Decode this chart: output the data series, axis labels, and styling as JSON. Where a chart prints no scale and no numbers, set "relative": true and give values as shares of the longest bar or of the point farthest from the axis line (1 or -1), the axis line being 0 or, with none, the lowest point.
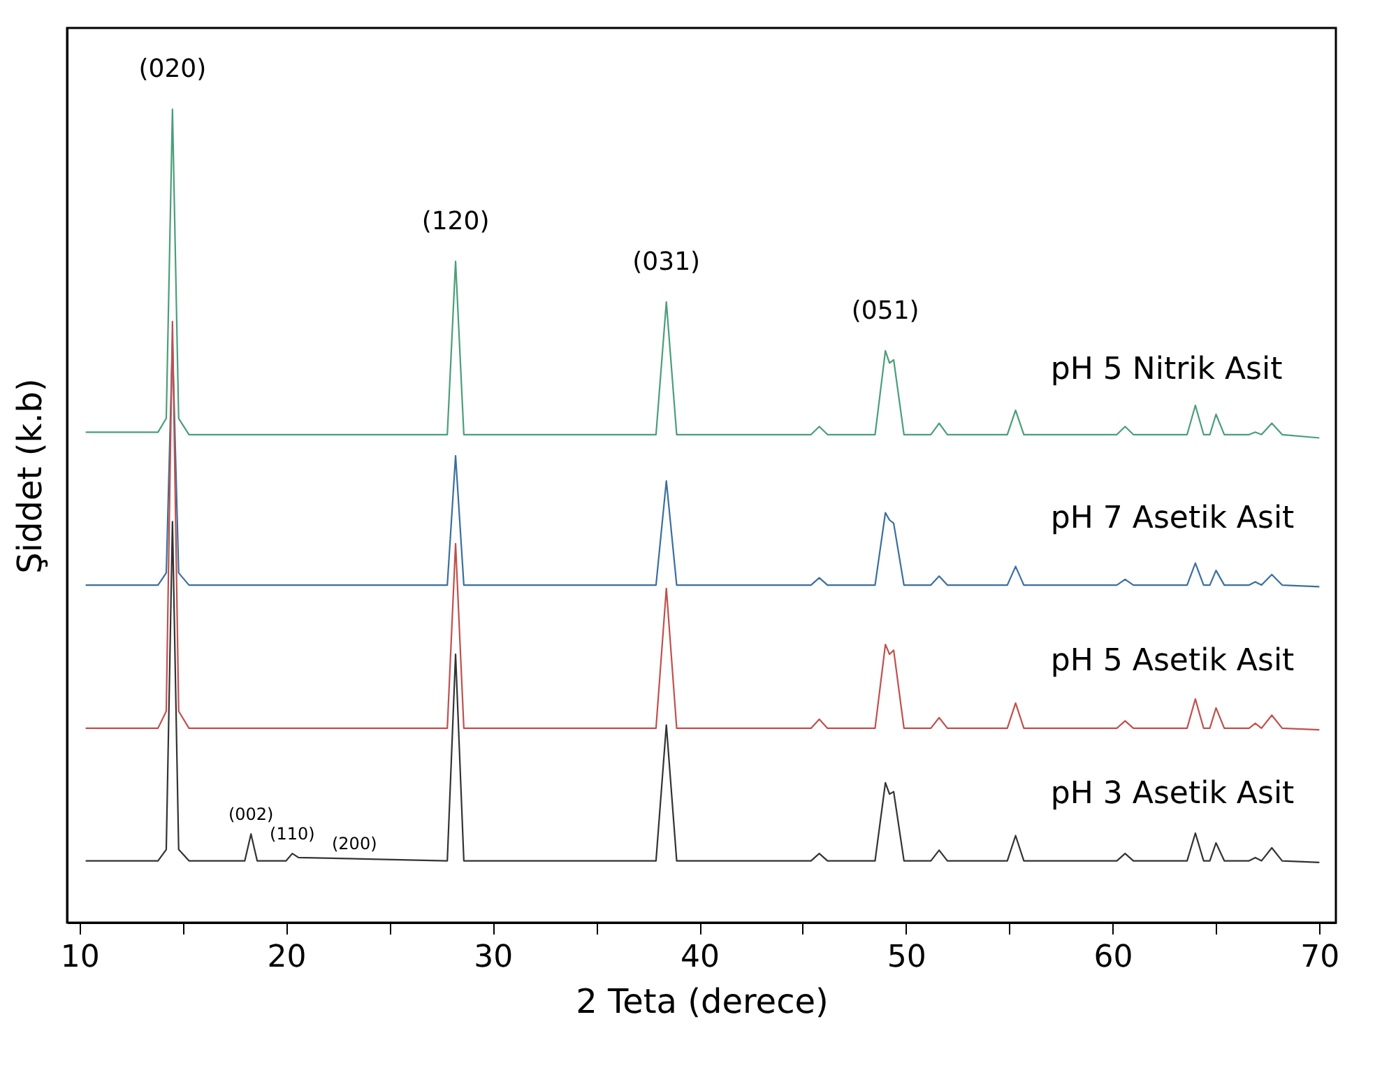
{
  "chart_data": {
    "type": "line",
    "relative": true,
    "xlabel": "2 Teta (derece)",
    "ylabel": "Şiddet (k.b)",
    "xlim": [
      9.4,
      70.8
    ],
    "xticks": [
      10,
      {
        "value": 15,
        "label": null
      },
      20,
      {
        "value": 25,
        "label": null
      },
      30,
      {
        "value": 35,
        "label": null
      },
      40,
      {
        "value": 45,
        "label": null
      },
      50,
      {
        "value": 55,
        "label": null
      },
      60,
      {
        "value": 65,
        "label": null
      },
      70
    ],
    "legend": false,
    "grid": false,
    "marker": "none",
    "line_style": "solid",
    "x": [
      10.3,
      13.8,
      14.2,
      14.5,
      14.8,
      15.3,
      18.0,
      18.3,
      18.6,
      20.0,
      20.3,
      20.6,
      27.8,
      28.2,
      28.6,
      36.0,
      37.9,
      38.4,
      38.9,
      45.4,
      45.8,
      46.2,
      48.5,
      49.0,
      49.2,
      49.4,
      49.9,
      51.2,
      51.6,
      52.0,
      54.9,
      55.3,
      55.7,
      60.2,
      60.6,
      61.0,
      63.6,
      64.0,
      64.4,
      64.7,
      65.0,
      65.4,
      66.6,
      66.9,
      67.2,
      67.7,
      68.2,
      70.0
    ],
    "series": [
      {
        "name": "pH 5 Nitrik Asit",
        "color": "#4a9e7a",
        "values": [
          0.603,
          0.603,
          0.62,
          1.0,
          0.62,
          0.6,
          0.6,
          0.6,
          0.6,
          0.6,
          0.6,
          0.6,
          0.6,
          0.813,
          0.6,
          0.6,
          0.6,
          0.763,
          0.6,
          0.6,
          0.61,
          0.6,
          0.6,
          0.703,
          0.688,
          0.692,
          0.6,
          0.6,
          0.614,
          0.6,
          0.6,
          0.63,
          0.6,
          0.6,
          0.61,
          0.6,
          0.6,
          0.636,
          0.6,
          0.6,
          0.625,
          0.6,
          0.6,
          0.603,
          0.6,
          0.614,
          0.6,
          0.596
        ]
      },
      {
        "name": "pH 7 Asetik Asit",
        "color": "#3a6f9e",
        "values": [
          0.415,
          0.415,
          0.43,
          0.714,
          0.43,
          0.415,
          0.415,
          0.415,
          0.415,
          0.415,
          0.415,
          0.415,
          0.415,
          0.574,
          0.415,
          0.415,
          0.415,
          0.543,
          0.415,
          0.415,
          0.424,
          0.415,
          0.415,
          0.504,
          0.495,
          0.491,
          0.415,
          0.415,
          0.426,
          0.415,
          0.415,
          0.438,
          0.415,
          0.415,
          0.422,
          0.415,
          0.415,
          0.442,
          0.415,
          0.415,
          0.433,
          0.415,
          0.415,
          0.419,
          0.415,
          0.428,
          0.415,
          0.413
        ]
      },
      {
        "name": "pH 5 Asetik Asit",
        "color": "#c0504d",
        "values": [
          0.239,
          0.239,
          0.26,
          0.739,
          0.26,
          0.239,
          0.239,
          0.239,
          0.239,
          0.239,
          0.239,
          0.239,
          0.239,
          0.466,
          0.239,
          0.239,
          0.239,
          0.411,
          0.239,
          0.239,
          0.25,
          0.239,
          0.239,
          0.342,
          0.33,
          0.335,
          0.239,
          0.239,
          0.252,
          0.239,
          0.239,
          0.27,
          0.239,
          0.239,
          0.248,
          0.239,
          0.239,
          0.275,
          0.239,
          0.239,
          0.264,
          0.239,
          0.239,
          0.245,
          0.239,
          0.255,
          0.239,
          0.237
        ]
      },
      {
        "name": "pH 3 Asetik Asit",
        "color": "#333333",
        "values": [
          0.076,
          0.076,
          0.09,
          0.493,
          0.09,
          0.076,
          0.076,
          0.109,
          0.076,
          0.076,
          0.085,
          0.08,
          0.076,
          0.33,
          0.076,
          0.076,
          0.076,
          0.243,
          0.076,
          0.076,
          0.085,
          0.076,
          0.076,
          0.172,
          0.158,
          0.161,
          0.076,
          0.076,
          0.089,
          0.076,
          0.076,
          0.107,
          0.076,
          0.076,
          0.085,
          0.076,
          0.076,
          0.11,
          0.076,
          0.076,
          0.098,
          0.076,
          0.076,
          0.08,
          0.076,
          0.092,
          0.076,
          0.074
        ]
      }
    ],
    "annotations": [
      {
        "text": "(020)",
        "x": 14.5,
        "y": 1.0
      },
      {
        "text": "(120)",
        "x": 28.2,
        "y": 0.813
      },
      {
        "text": "(031)",
        "x": 38.4,
        "y": 0.763
      },
      {
        "text": "(051)",
        "x": 49.0,
        "y": 0.703
      },
      {
        "text": "(002)",
        "x": 18.3,
        "y": 0.109
      },
      {
        "text": "(110)",
        "x": 20.3,
        "y": 0.085
      },
      {
        "text": "(200)",
        "x": 20.6,
        "y": 0.08
      }
    ]
  }
}
